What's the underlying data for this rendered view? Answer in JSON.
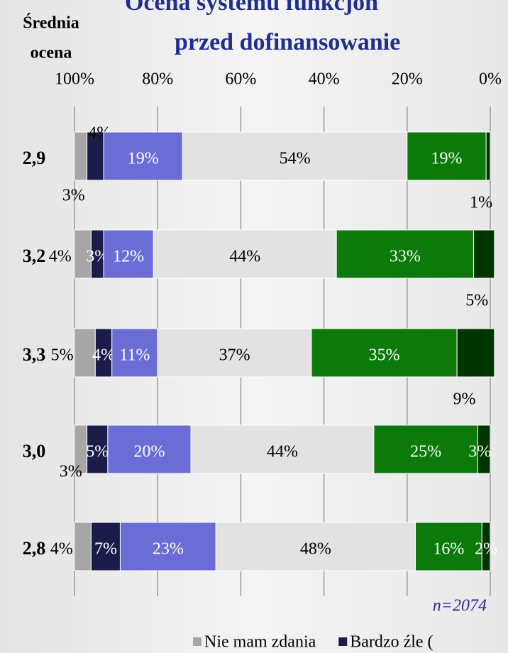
{
  "chart_data": {
    "type": "stacked-bar-horizontal",
    "title_lines": [
      "Ocena systemu funkcjon",
      "przed dofinansowanie"
    ],
    "avg_header_lines": [
      "Średnia",
      "ocena"
    ],
    "avg_values": [
      "2,9",
      "3,2",
      "3,3",
      "3,0",
      "2,8"
    ],
    "note": "n=2074",
    "xlim": [
      100,
      0
    ],
    "xticks": [
      {
        "value": 100,
        "label": "100%"
      },
      {
        "value": 80,
        "label": "80%"
      },
      {
        "value": 60,
        "label": "60%"
      },
      {
        "value": 40,
        "label": "40%"
      },
      {
        "value": 20,
        "label": "20%"
      },
      {
        "value": 0,
        "label": "0%"
      }
    ],
    "grid": true,
    "series": [
      {
        "name": "Nie mam zdania",
        "color": "#a6a6a6",
        "values": [
          3,
          4,
          5,
          3,
          4
        ],
        "value_labels": [
          "3%",
          "4%",
          "5%",
          "3%",
          "4%"
        ]
      },
      {
        "name": "Bardzo źle (",
        "color": "#1c1c4a",
        "values": [
          4,
          3,
          4,
          5,
          7
        ],
        "value_labels": [
          "4%",
          "3%",
          "4%",
          "5%",
          "7%"
        ]
      },
      {
        "color": "#6c6cd6",
        "values": [
          19,
          12,
          11,
          20,
          23
        ],
        "value_labels": [
          "19%",
          "12%",
          "11%",
          "20%",
          "23%"
        ]
      },
      {
        "color": "#e2e2e2",
        "values": [
          54,
          44,
          37,
          44,
          48
        ],
        "value_labels": [
          "54%",
          "44%",
          "37%",
          "44%",
          "48%"
        ]
      },
      {
        "color": "#0b7a0b",
        "values": [
          19,
          33,
          35,
          25,
          16
        ],
        "value_labels": [
          "19%",
          "33%",
          "35%",
          "25%",
          "16%"
        ]
      },
      {
        "color": "#003500",
        "values": [
          1,
          5,
          9,
          3,
          2
        ],
        "value_labels": [
          "1%",
          "5%",
          "9%",
          "3%",
          "2%"
        ]
      }
    ]
  }
}
